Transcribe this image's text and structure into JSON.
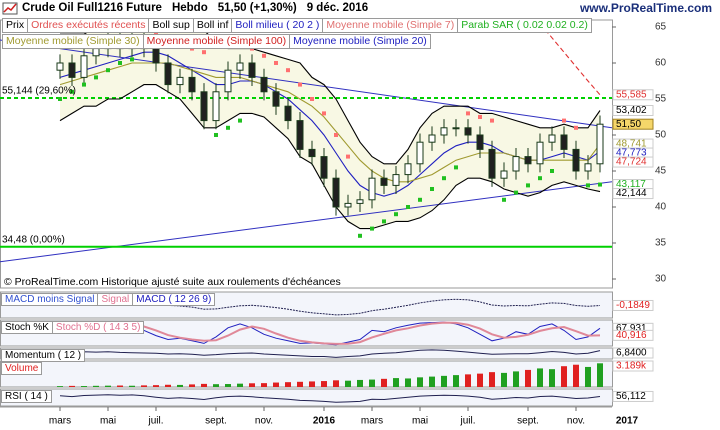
{
  "header": {
    "title": "Crude Oil Full1216 Future",
    "period": "Hebdo",
    "last": "51,50 (+1,30%)",
    "date": "9 déc. 2016",
    "site": "www.ProRealTime.com"
  },
  "chart_data": {
    "type": "candlestick",
    "legend": [
      [
        {
          "name": "Prix",
          "color": "#000000"
        },
        {
          "name": "Ordres exécutés récents",
          "color": "#e05050"
        },
        {
          "name": "Boll sup",
          "color": "#000000"
        },
        {
          "name": "Boll inf",
          "color": "#000000"
        },
        {
          "name": "Boll milieu ( 20 2 )",
          "color": "#2020c0"
        },
        {
          "name": "Moyenne mobile (Simple 7)",
          "color": "#e07070"
        },
        {
          "name": "Parab SAR ( 0.02 0.02 0.2)",
          "color": "#20b020"
        }
      ],
      [
        {
          "name": "Moyenne mobile (Simple 30)",
          "color": "#a09a30"
        },
        {
          "name": "Moyenne mobile (Simple 100)",
          "color": "#d02020"
        },
        {
          "name": "Moyenne mobile (Simple 20)",
          "color": "#2020c0"
        }
      ]
    ],
    "categories": [
      "mars",
      null,
      null,
      null,
      "mai",
      null,
      null,
      null,
      "juil.",
      null,
      null,
      null,
      null,
      "sept.",
      null,
      null,
      null,
      "nov.",
      null,
      null,
      null,
      null,
      "2016",
      null,
      null,
      null,
      "mars",
      null,
      null,
      null,
      "mai",
      null,
      null,
      null,
      "juil.",
      null,
      null,
      null,
      null,
      "sept.",
      null,
      null,
      null,
      "nov.",
      null,
      null
    ],
    "future_label": "2017",
    "open": [
      59,
      60,
      58,
      61,
      62,
      63,
      62,
      63,
      62,
      60,
      57,
      58,
      56,
      52,
      56,
      59,
      60,
      58,
      56,
      54,
      52,
      48,
      47,
      44,
      40,
      40.5,
      41,
      44,
      43,
      44.5,
      46,
      49,
      50,
      51,
      51,
      50,
      48,
      44,
      45,
      47,
      46,
      49,
      50,
      48,
      45,
      46
    ],
    "high": [
      61.2,
      61.2,
      62.2,
      63.2,
      64.2,
      64.2,
      64.2,
      64.2,
      63.2,
      61.2,
      59.2,
      59.2,
      57.2,
      57.2,
      60.2,
      61.2,
      61.2,
      59.2,
      57.2,
      55.2,
      53.2,
      49.2,
      48.2,
      45.2,
      41.7,
      42.2,
      45.2,
      45.2,
      45.7,
      47.2,
      50.2,
      51.2,
      52.2,
      52.2,
      52.2,
      51.2,
      49.2,
      46.2,
      48.2,
      48.2,
      50.2,
      51.2,
      51.2,
      49.2,
      47.2,
      52.7
    ],
    "low": [
      57.8,
      56.8,
      56.8,
      59.8,
      60.8,
      60.8,
      60.8,
      60.8,
      58.8,
      55.8,
      55.8,
      54.8,
      50.8,
      50.8,
      54.8,
      57.8,
      56.8,
      54.8,
      52.8,
      50.8,
      46.8,
      45.8,
      42.8,
      38.8,
      38.8,
      39.3,
      39.8,
      41.8,
      41.8,
      43.3,
      44.8,
      47.8,
      48.8,
      49.8,
      48.8,
      46.8,
      42.8,
      42.8,
      43.8,
      44.8,
      44.8,
      47.8,
      46.8,
      43.8,
      43.8,
      44.8
    ],
    "close": [
      60,
      58,
      61,
      62,
      63,
      62,
      63,
      62,
      60,
      57,
      58,
      56,
      52,
      56,
      59,
      60,
      58,
      56,
      54,
      52,
      48,
      47,
      44,
      40,
      40.5,
      41,
      44,
      43,
      44.5,
      46,
      49,
      50,
      51,
      51,
      50,
      48,
      44,
      45,
      47,
      46,
      49,
      50,
      48,
      45,
      46,
      51.5
    ],
    "up_color": "#ffffff",
    "down_color": "#202020",
    "candle_stroke": "#1a3a1a",
    "band_fill": "#f8f8e4",
    "overlays": [
      {
        "color": "#000000",
        "values": [
          64,
          64,
          64,
          65,
          66,
          66,
          66,
          66,
          66,
          66,
          65,
          65,
          64.5,
          63,
          62,
          62,
          62,
          61.5,
          61,
          60.5,
          60,
          58,
          57,
          55,
          52,
          49,
          47,
          46,
          46,
          48,
          51,
          53,
          54,
          54,
          54,
          53,
          53,
          52.5,
          52,
          51.5,
          51,
          51,
          51.5,
          51,
          51,
          53.402
        ]
      },
      {
        "color": "#000000",
        "values": [
          52,
          53,
          54,
          54,
          55,
          55,
          56,
          57,
          57,
          56,
          55,
          53,
          51,
          51,
          52,
          53,
          53,
          52.5,
          51,
          49.5,
          47,
          46,
          43,
          40,
          38,
          37,
          37,
          37.5,
          38,
          38,
          38.5,
          39.5,
          41,
          43,
          44,
          44,
          43.5,
          42.5,
          42,
          41.5,
          42,
          43,
          43.5,
          43,
          42.5,
          42.144
        ]
      },
      {
        "color": "#2020c0",
        "values": [
          58,
          58.5,
          59,
          59.5,
          60,
          60.5,
          61,
          61.5,
          61.5,
          61,
          60,
          59,
          58,
          57,
          57,
          57.5,
          57.5,
          57,
          56,
          55,
          53.5,
          52,
          50,
          47.5,
          45,
          43,
          42,
          41.5,
          42,
          43,
          44.5,
          46,
          47.5,
          48.5,
          49,
          49,
          48.5,
          47.5,
          47,
          46.5,
          46.5,
          47,
          47.5,
          47,
          46.5,
          47.773
        ]
      },
      {
        "color": "#a09a30",
        "values": [
          57,
          57.5,
          58,
          58.5,
          59,
          59.5,
          60,
          60,
          60,
          60,
          59.5,
          59,
          58.5,
          58,
          58,
          58,
          57.5,
          57,
          56.5,
          56,
          55,
          54,
          52.5,
          50.5,
          48.5,
          46.5,
          45,
          44,
          43.5,
          43.5,
          44,
          44.5,
          45.5,
          46.5,
          47,
          47.5,
          47.5,
          47.5,
          47,
          46.5,
          46.5,
          46.5,
          46.5,
          46.5,
          46.5,
          48.741
        ]
      },
      {
        "color": "#e03030",
        "dash": "5 3",
        "values": [
          null,
          null,
          null,
          null,
          null,
          null,
          null,
          null,
          null,
          null,
          null,
          null,
          null,
          null,
          null,
          null,
          null,
          null,
          null,
          null,
          null,
          null,
          null,
          null,
          null,
          null,
          null,
          null,
          null,
          null,
          null,
          null,
          null,
          null,
          null,
          null,
          null,
          null,
          null,
          null,
          65.5,
          63.5,
          61.5,
          59.5,
          57.5,
          55.585
        ]
      }
    ],
    "sar": {
      "color_below": "#20c020",
      "color_above": "#ff7070",
      "values": [
        55,
        56,
        57,
        58,
        59,
        60,
        60.5,
        65,
        64,
        63.5,
        63,
        62,
        61.5,
        50,
        51,
        52,
        62,
        61,
        60,
        59,
        57,
        55,
        53,
        50,
        47,
        36,
        37,
        38,
        39,
        40,
        41,
        42.5,
        44,
        45.5,
        53,
        52.5,
        52,
        41,
        42,
        43,
        44,
        45,
        52,
        51,
        43,
        43.117
      ]
    },
    "levels": [
      {
        "value": 55.144,
        "label": "55,144 (29,60%)",
        "color": "#00d000",
        "dash": "4 3"
      },
      {
        "value": 34.48,
        "label": "34,48 (0,00%)",
        "color": "#00d000"
      }
    ],
    "trendlines": [
      {
        "color": "#3030c0",
        "values": [
          63.2,
          51.0
        ]
      },
      {
        "color": "#3030c0",
        "values": [
          32.4,
          43.5
        ]
      }
    ],
    "ylim": [
      28.75,
      65.97
    ],
    "yticks": [
      30,
      35,
      40,
      45,
      50,
      55,
      60,
      65
    ],
    "price_tags": [
      {
        "value": 55.585,
        "label": "55,585",
        "color": "#e03030"
      },
      {
        "value": 53.402,
        "label": "53,402",
        "color": "#000000"
      },
      {
        "value": 51.5,
        "label": "51,50",
        "color": "#000000",
        "fill": "#f5d66a"
      },
      {
        "value": 48.741,
        "label": "48,741",
        "color": "#a09a30"
      },
      {
        "value": 47.773,
        "label": "47,773",
        "color": "#2020c0"
      },
      {
        "value": 47.724,
        "label": "47,724",
        "color": "#e03030"
      },
      {
        "value": 43.117,
        "label": "43,117",
        "color": "#20b020"
      },
      {
        "value": 42.144,
        "label": "42,144",
        "color": "#000000"
      }
    ],
    "note": "© ProRealTime.com Historique ajusté suite aux roulements d'échéances",
    "panels": [
      {
        "type": "line",
        "legend": [
          {
            "name": "MACD moins Signal",
            "color": "#3050d0"
          },
          {
            "name": "Signal",
            "color": "#e07090"
          },
          {
            "name": "MACD ( 12 26 9)",
            "color": "#2020c0"
          }
        ],
        "ylim": [
          -5,
          5
        ],
        "series": [
          {
            "color": "#202050",
            "dash": "2 1",
            "tag": "-0,1849",
            "tag_color": "#e02020",
            "values": [
              1.5,
              1.2,
              1.4,
              1.6,
              1.8,
              1.6,
              1.5,
              1.2,
              0.6,
              -0.1,
              -0.4,
              -0.8,
              -1.6,
              -1.5,
              -0.9,
              -0.3,
              -0.1,
              -0.5,
              -1,
              -1.6,
              -2.4,
              -3,
              -3.4,
              -3.8,
              -3.6,
              -3.2,
              -2.2,
              -1.6,
              -0.9,
              -0.1,
              0.8,
              1.5,
              2,
              2.2,
              2,
              1.2,
              0,
              -0.4,
              -0.2,
              -0.3,
              0.3,
              0.8,
              0.6,
              -0.2,
              -0.5,
              -0.1849
            ]
          }
        ]
      },
      {
        "type": "line",
        "legend": [
          {
            "name": "Stoch %K",
            "color": "#000000"
          },
          {
            "name": "Stoch %D ( 14 3 5)",
            "color": "#e07090"
          }
        ],
        "ylim": [
          0,
          100
        ],
        "series": [
          {
            "color": "#2020c0",
            "tag": "67,931",
            "tag_color": "#000000",
            "values": [
              80,
              70,
              85,
              90,
              92,
              80,
              85,
              60,
              40,
              25,
              30,
              20,
              10,
              35,
              70,
              85,
              70,
              45,
              30,
              20,
              10,
              12,
              8,
              5,
              15,
              25,
              60,
              55,
              70,
              80,
              88,
              90,
              92,
              85,
              70,
              45,
              20,
              30,
              55,
              45,
              75,
              85,
              60,
              25,
              35,
              67.931
            ]
          },
          {
            "color": "#e08898",
            "width": 2,
            "tag": "40,916",
            "tag_color": "#e02020",
            "values": [
              75,
              74,
              78,
              82,
              88,
              86,
              85,
              75,
              60,
              42,
              32,
              25,
              20,
              22,
              40,
              63,
              75,
              66,
              48,
              32,
              20,
              14,
              10,
              8,
              9,
              15,
              33,
              47,
              60,
              68,
              79,
              86,
              90,
              89,
              82,
              67,
              45,
              32,
              35,
              43,
              58,
              68,
              73,
              57,
              40,
              40.916
            ]
          }
        ]
      },
      {
        "type": "line",
        "legend": [
          {
            "name": "Momentum ( 12 )",
            "color": "#000000"
          }
        ],
        "ylim": [
          -20,
          15
        ],
        "series": [
          {
            "color": "#202050",
            "tag": "6,8400",
            "tag_color": "#000000",
            "values": [
              2,
              1,
              3,
              2,
              3,
              1,
              0,
              -1,
              -2,
              -4,
              -3,
              -5,
              -8,
              -6,
              -3,
              -2,
              -1,
              -4,
              -6,
              -8,
              -10,
              -12,
              -12,
              -15,
              -12,
              -10,
              -4,
              -2,
              0,
              4,
              8,
              9,
              8,
              5,
              2,
              -2,
              -5,
              -4,
              -3,
              -3,
              0,
              4,
              1,
              -4,
              -2,
              6.84
            ]
          }
        ]
      },
      {
        "type": "bar",
        "legend": [
          {
            "name": "Volume",
            "color": "#e02020"
          }
        ],
        "ylim": [
          0,
          3500
        ],
        "up_color": "#20a020",
        "down_color": "#e02020",
        "series": [
          {
            "tag": "3.189k",
            "tag_color": "#e02020",
            "values": [
              120,
              150,
              130,
              160,
              180,
              200,
              170,
              220,
              250,
              300,
              280,
              350,
              420,
              380,
              400,
              450,
              500,
              520,
              600,
              650,
              700,
              750,
              800,
              900,
              850,
              950,
              1000,
              1100,
              1200,
              1150,
              1300,
              1400,
              1500,
              1600,
              1700,
              1800,
              2000,
              1900,
              2100,
              2300,
              2500,
              2400,
              2800,
              3000,
              2700,
              3189
            ]
          }
        ]
      },
      {
        "type": "line",
        "legend": [
          {
            "name": "RSI ( 14 )",
            "color": "#000000"
          }
        ],
        "ylim": [
          0,
          100
        ],
        "series": [
          {
            "color": "#202050",
            "tag": "56,112",
            "tag_color": "#000000",
            "values": [
              60,
              55,
              62,
              64,
              66,
              63,
              65,
              60,
              52,
              45,
              48,
              44,
              38,
              48,
              56,
              58,
              54,
              48,
              44,
              40,
              33,
              31,
              27,
              22,
              24,
              27,
              40,
              38,
              45,
              52,
              58,
              61,
              63,
              62,
              58,
              52,
              40,
              44,
              50,
              47,
              56,
              58,
              52,
              44,
              47,
              56.112
            ]
          }
        ]
      }
    ]
  }
}
